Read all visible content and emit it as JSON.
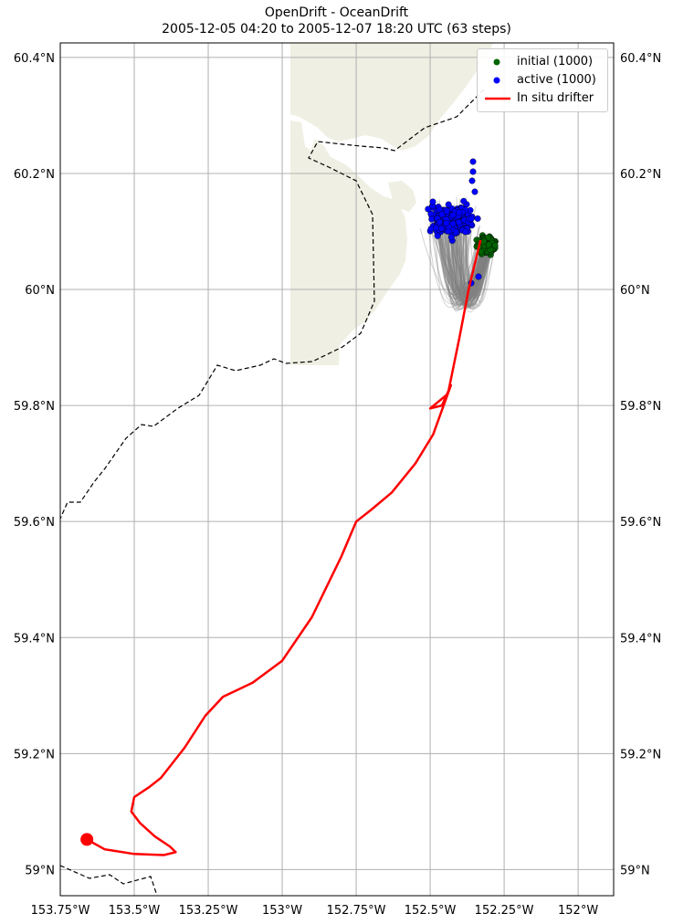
{
  "title": {
    "line1": "OpenDrift - OceanDrift",
    "line2": "2005-12-05 04:20 to 2005-12-07 18:20 UTC (63 steps)"
  },
  "map": {
    "lon_range": [
      -153.75,
      -151.88
    ],
    "lat_range": [
      58.955,
      60.425
    ],
    "gridlines": true,
    "land_color": "#efefe3",
    "lon_ticks": [
      {
        "value": -153.75,
        "label": "153.75°W"
      },
      {
        "value": -153.5,
        "label": "153.5°W"
      },
      {
        "value": -153.25,
        "label": "153.25°W"
      },
      {
        "value": -153.0,
        "label": "153°W"
      },
      {
        "value": -152.75,
        "label": "152.75°W"
      },
      {
        "value": -152.5,
        "label": "152.5°W"
      },
      {
        "value": -152.25,
        "label": "152.25°W"
      },
      {
        "value": -152.0,
        "label": "152°W"
      }
    ],
    "lat_ticks": [
      {
        "value": 59.0,
        "label": "59°N"
      },
      {
        "value": 59.2,
        "label": "59.2°N"
      },
      {
        "value": 59.4,
        "label": "59.4°N"
      },
      {
        "value": 59.6,
        "label": "59.6°N"
      },
      {
        "value": 59.8,
        "label": "59.8°N"
      },
      {
        "value": 60.0,
        "label": "60°N"
      },
      {
        "value": 60.2,
        "label": "60.2°N"
      },
      {
        "value": 60.4,
        "label": "60.4°N"
      }
    ]
  },
  "legend": {
    "placement": "upper-right",
    "items": [
      {
        "label": "initial (1000)",
        "color": "#006400",
        "kind": "marker"
      },
      {
        "label": "active (1000)",
        "color": "#0000ff",
        "kind": "marker"
      },
      {
        "label": "In situ drifter",
        "color": "#ff0000",
        "kind": "line"
      }
    ]
  },
  "chart_data": {
    "type": "scatter",
    "elements": {
      "trajectories_color": "#808080",
      "initial": {
        "color": "#006400",
        "center": [
          -152.31,
          60.075
        ],
        "spread": [
          0.025,
          0.02
        ]
      },
      "active": {
        "color": "#0000ff",
        "center": [
          -152.43,
          60.12
        ],
        "spread": [
          0.07,
          0.045
        ]
      },
      "drifter": {
        "color": "#ff0000",
        "lonlat": [
          [
            -153.66,
            59.052
          ],
          [
            -153.6,
            59.035
          ],
          [
            -153.5,
            59.027
          ],
          [
            -153.4,
            59.025
          ],
          [
            -153.36,
            59.03
          ],
          [
            -153.38,
            59.04
          ],
          [
            -153.43,
            59.057
          ],
          [
            -153.48,
            59.08
          ],
          [
            -153.51,
            59.1
          ],
          [
            -153.5,
            59.125
          ],
          [
            -153.45,
            59.142
          ],
          [
            -153.41,
            59.158
          ],
          [
            -153.33,
            59.21
          ],
          [
            -153.26,
            59.265
          ],
          [
            -153.2,
            59.298
          ],
          [
            -153.1,
            59.322
          ],
          [
            -153.0,
            59.36
          ],
          [
            -152.9,
            59.435
          ],
          [
            -152.8,
            59.54
          ],
          [
            -152.75,
            59.6
          ],
          [
            -152.7,
            59.62
          ],
          [
            -152.63,
            59.65
          ],
          [
            -152.55,
            59.7
          ],
          [
            -152.49,
            59.75
          ],
          [
            -152.43,
            59.835
          ],
          [
            -152.46,
            59.8
          ],
          [
            -152.5,
            59.795
          ],
          [
            -152.44,
            59.82
          ],
          [
            -152.4,
            59.92
          ],
          [
            -152.37,
            60.0
          ],
          [
            -152.33,
            60.085
          ]
        ],
        "end_marker": [
          -153.66,
          59.052
        ]
      }
    }
  }
}
